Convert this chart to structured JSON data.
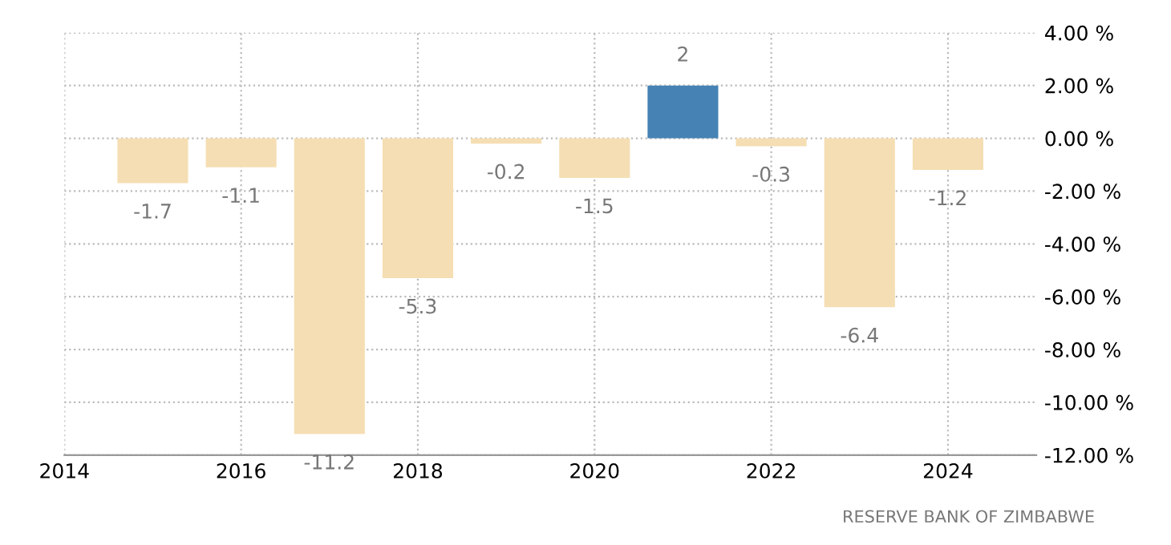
{
  "chart_data": {
    "type": "bar",
    "x": [
      2015,
      2016,
      2017,
      2018,
      2019,
      2020,
      2021,
      2022,
      2023,
      2024
    ],
    "values": [
      -1.7,
      -1.1,
      -11.2,
      -5.3,
      -0.2,
      -1.5,
      2,
      -0.3,
      -6.4,
      -1.2
    ],
    "colors": [
      "#f5deb3",
      "#f5deb3",
      "#f5deb3",
      "#f5deb3",
      "#f5deb3",
      "#f5deb3",
      "#4682b4",
      "#f5deb3",
      "#f5deb3",
      "#f5deb3"
    ],
    "data_labels": true,
    "xlim": [
      2014,
      2025
    ],
    "xticks": [
      2014,
      2016,
      2018,
      2020,
      2022,
      2024
    ],
    "ylim": [
      -12,
      4
    ],
    "yticks": [
      {
        "value": -12,
        "label": "-12.00 %"
      },
      {
        "value": -10,
        "label": "-10.00 %"
      },
      {
        "value": -8,
        "label": "-8.00 %"
      },
      {
        "value": -6,
        "label": "-6.00 %"
      },
      {
        "value": -4,
        "label": "-4.00 %"
      },
      {
        "value": -2,
        "label": "-2.00 %"
      },
      {
        "value": 0,
        "label": "0.00 %"
      },
      {
        "value": 2,
        "label": "2.00 %"
      },
      {
        "value": 4,
        "label": "4.00 %"
      }
    ],
    "grid": true,
    "annotations": [
      "RESERVE BANK OF ZIMBABWE"
    ]
  }
}
